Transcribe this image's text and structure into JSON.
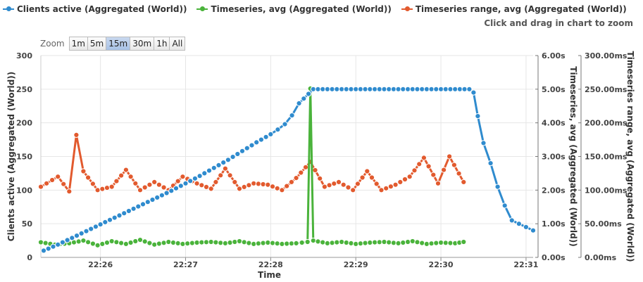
{
  "legend": {
    "items": [
      {
        "label": "Clients active (Aggregated (World))",
        "color": "#2f8bce"
      },
      {
        "label": "Timeseries, avg (Aggregated (World))",
        "color": "#4ab33b"
      },
      {
        "label": "Timeseries range, avg (Aggregated (World))",
        "color": "#e25a2e"
      }
    ]
  },
  "hint": "Click and drag in chart to zoom",
  "zoom": {
    "label": "Zoom",
    "buttons": [
      "1m",
      "5m",
      "15m",
      "30m",
      "1h",
      "All"
    ],
    "active_index": 2
  },
  "chart_data": {
    "type": "line",
    "xlabel": "Time",
    "x_ticks": [
      "22:26",
      "22:27",
      "22:28",
      "22:29",
      "22:30",
      "22:31"
    ],
    "xlim": [
      "22:25:18",
      "22:31:05"
    ],
    "axes": {
      "left": {
        "label": "Clients active (Aggregated (World))",
        "ylim": [
          0,
          300
        ],
        "ticks": [
          "0",
          "50",
          "100",
          "150",
          "200",
          "250",
          "300"
        ]
      },
      "right1": {
        "label": "Timeseries, avg (Aggregated (World))",
        "ylim": [
          0,
          6
        ],
        "ticks": [
          "0.00s",
          "1.00s",
          "2.00s",
          "3.00s",
          "4.00s",
          "5.00s",
          "6.00s"
        ]
      },
      "right2": {
        "label": "Timeseries range, avg (Aggregated (World))",
        "ylim": [
          0,
          300
        ],
        "ticks": [
          "0.00ms",
          "50.00ms",
          "100.00ms",
          "150.00ms",
          "200.00ms",
          "250.00ms",
          "300.00ms"
        ]
      }
    },
    "series": [
      {
        "name": "Clients active (Aggregated (World))",
        "axis": "left",
        "color": "#2f8bce",
        "points": [
          [
            "22:25:20",
            10
          ],
          [
            "22:25:30",
            19
          ],
          [
            "22:25:40",
            29
          ],
          [
            "22:25:50",
            39
          ],
          [
            "22:26:00",
            49
          ],
          [
            "22:26:10",
            59
          ],
          [
            "22:26:20",
            69
          ],
          [
            "22:26:30",
            79
          ],
          [
            "22:26:40",
            89
          ],
          [
            "22:26:50",
            99
          ],
          [
            "22:27:00",
            110
          ],
          [
            "22:27:10",
            121
          ],
          [
            "22:27:20",
            133
          ],
          [
            "22:27:30",
            145
          ],
          [
            "22:27:40",
            158
          ],
          [
            "22:27:50",
            171
          ],
          [
            "22:28:00",
            183
          ],
          [
            "22:28:05",
            190
          ],
          [
            "22:28:10",
            198
          ],
          [
            "22:28:15",
            211
          ],
          [
            "22:28:20",
            229
          ],
          [
            "22:28:30",
            250
          ],
          [
            "22:29:00",
            250
          ],
          [
            "22:29:30",
            250
          ],
          [
            "22:30:00",
            250
          ],
          [
            "22:30:20",
            250
          ],
          [
            "22:30:23",
            245
          ],
          [
            "22:30:26",
            210
          ],
          [
            "22:30:30",
            170
          ],
          [
            "22:30:35",
            140
          ],
          [
            "22:30:40",
            105
          ],
          [
            "22:30:45",
            77
          ],
          [
            "22:30:50",
            55
          ],
          [
            "22:30:55",
            50
          ],
          [
            "22:31:00",
            45
          ],
          [
            "22:31:05",
            40
          ]
        ]
      },
      {
        "name": "Timeseries, avg (Aggregated (World))",
        "axis": "right1",
        "color": "#4ab33b",
        "points": [
          [
            "22:25:18",
            0.45
          ],
          [
            "22:25:28",
            0.38
          ],
          [
            "22:25:38",
            0.42
          ],
          [
            "22:25:48",
            0.5
          ],
          [
            "22:25:58",
            0.36
          ],
          [
            "22:26:08",
            0.48
          ],
          [
            "22:26:18",
            0.4
          ],
          [
            "22:26:28",
            0.52
          ],
          [
            "22:26:38",
            0.38
          ],
          [
            "22:26:48",
            0.46
          ],
          [
            "22:26:58",
            0.4
          ],
          [
            "22:27:08",
            0.44
          ],
          [
            "22:27:18",
            0.46
          ],
          [
            "22:27:28",
            0.42
          ],
          [
            "22:27:38",
            0.48
          ],
          [
            "22:27:48",
            0.4
          ],
          [
            "22:27:58",
            0.44
          ],
          [
            "22:28:08",
            0.4
          ],
          [
            "22:28:18",
            0.42
          ],
          [
            "22:28:26",
            0.46
          ],
          [
            "22:28:28",
            5.02
          ],
          [
            "22:28:30",
            0.5
          ],
          [
            "22:28:40",
            0.42
          ],
          [
            "22:28:50",
            0.46
          ],
          [
            "22:29:00",
            0.4
          ],
          [
            "22:29:10",
            0.44
          ],
          [
            "22:29:20",
            0.46
          ],
          [
            "22:29:30",
            0.42
          ],
          [
            "22:29:40",
            0.48
          ],
          [
            "22:29:50",
            0.4
          ],
          [
            "22:30:00",
            0.44
          ],
          [
            "22:30:10",
            0.42
          ],
          [
            "22:30:16",
            0.46
          ]
        ]
      },
      {
        "name": "Timeseries range, avg (Aggregated (World))",
        "axis": "right2",
        "color": "#e25a2e",
        "points": [
          [
            "22:25:18",
            105
          ],
          [
            "22:25:30",
            120
          ],
          [
            "22:25:38",
            98
          ],
          [
            "22:25:43",
            182
          ],
          [
            "22:25:48",
            128
          ],
          [
            "22:25:58",
            100
          ],
          [
            "22:26:08",
            105
          ],
          [
            "22:26:18",
            130
          ],
          [
            "22:26:28",
            100
          ],
          [
            "22:26:38",
            112
          ],
          [
            "22:26:48",
            100
          ],
          [
            "22:26:58",
            120
          ],
          [
            "22:27:08",
            110
          ],
          [
            "22:27:18",
            102
          ],
          [
            "22:27:28",
            132
          ],
          [
            "22:27:38",
            102
          ],
          [
            "22:27:48",
            110
          ],
          [
            "22:27:58",
            108
          ],
          [
            "22:28:08",
            100
          ],
          [
            "22:28:18",
            118
          ],
          [
            "22:28:28",
            142
          ],
          [
            "22:28:38",
            105
          ],
          [
            "22:28:48",
            112
          ],
          [
            "22:28:58",
            100
          ],
          [
            "22:29:08",
            128
          ],
          [
            "22:29:18",
            100
          ],
          [
            "22:29:28",
            108
          ],
          [
            "22:29:38",
            120
          ],
          [
            "22:29:48",
            148
          ],
          [
            "22:29:58",
            110
          ],
          [
            "22:30:06",
            150
          ],
          [
            "22:30:16",
            112
          ]
        ]
      }
    ],
    "grid": true,
    "legend_position": "top-left"
  }
}
